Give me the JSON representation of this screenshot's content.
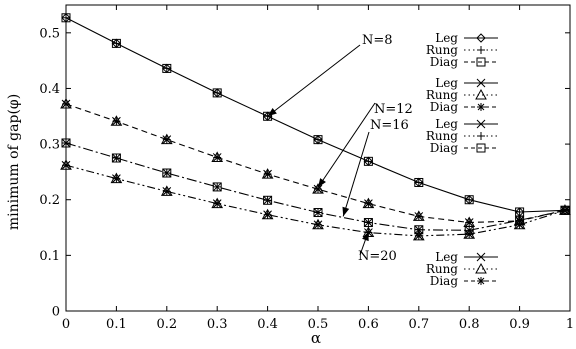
{
  "chart_data": {
    "type": "line",
    "xlabel": "α",
    "ylabel": "minimum of gap(φ)",
    "xlim": [
      0,
      1
    ],
    "ylim": [
      0,
      0.55
    ],
    "xticks": [
      0,
      0.1,
      0.2,
      0.3,
      0.4,
      0.5,
      0.6,
      0.7,
      0.8,
      0.9,
      1
    ],
    "xtick_labels": [
      "0",
      "0.1",
      "0.2",
      "0.3",
      "0.4",
      "0.5",
      "0.6",
      "0.7",
      "0.8",
      "0.9",
      "1"
    ],
    "yticks": [
      0,
      0.1,
      0.2,
      0.3,
      0.4,
      0.5
    ],
    "ytick_labels": [
      "0",
      "0.1",
      "0.2",
      "0.3",
      "0.4",
      "0.5"
    ],
    "grid": false,
    "x": [
      0,
      0.1,
      0.2,
      0.3,
      0.4,
      0.5,
      0.6,
      0.7,
      0.8,
      0.9,
      0.99
    ],
    "groups": [
      {
        "name": "N=8",
        "dash": "",
        "y": [
          0.527,
          0.481,
          0.436,
          0.392,
          0.35,
          0.308,
          0.269,
          0.231,
          0.2,
          0.178,
          0.181
        ],
        "series": [
          {
            "name": "Leg",
            "marker": "diamond"
          },
          {
            "name": "Rung",
            "marker": "plus"
          },
          {
            "name": "Diag",
            "marker": "square"
          }
        ]
      },
      {
        "name": "N=12",
        "dash": "6,4",
        "y": [
          0.372,
          0.341,
          0.308,
          0.276,
          0.246,
          0.219,
          0.193,
          0.17,
          0.159,
          0.162,
          0.181
        ],
        "series": [
          {
            "name": "Leg",
            "marker": "x"
          },
          {
            "name": "Rung",
            "marker": "triangle"
          },
          {
            "name": "Diag",
            "marker": "star"
          }
        ]
      },
      {
        "name": "N=16",
        "dash": "10,3,2,3",
        "y": [
          0.302,
          0.275,
          0.248,
          0.223,
          0.199,
          0.177,
          0.159,
          0.146,
          0.145,
          0.163,
          0.181
        ],
        "series": [
          {
            "name": "Leg",
            "marker": "x"
          },
          {
            "name": "Rung",
            "marker": "plus"
          },
          {
            "name": "Diag",
            "marker": "square"
          }
        ]
      },
      {
        "name": "N=20",
        "dash": "8,3,2,3,2,3",
        "y": [
          0.262,
          0.238,
          0.215,
          0.193,
          0.173,
          0.155,
          0.141,
          0.135,
          0.138,
          0.155,
          0.181
        ],
        "series": [
          {
            "name": "Leg",
            "marker": "x"
          },
          {
            "name": "Rung",
            "marker": "triangle"
          },
          {
            "name": "Diag",
            "marker": "star"
          }
        ]
      }
    ],
    "annotations": [
      {
        "group": 0,
        "label": "N=8",
        "arrow_to": [
          0.4,
          0.35
        ]
      },
      {
        "group": 1,
        "label": "N=12",
        "arrow_to": [
          0.5,
          0.222
        ]
      },
      {
        "group": 2,
        "label": "N=16",
        "arrow_to": [
          0.55,
          0.17
        ]
      },
      {
        "group": 3,
        "label": "N=20",
        "arrow_to": [
          0.6,
          0.143
        ]
      }
    ]
  }
}
